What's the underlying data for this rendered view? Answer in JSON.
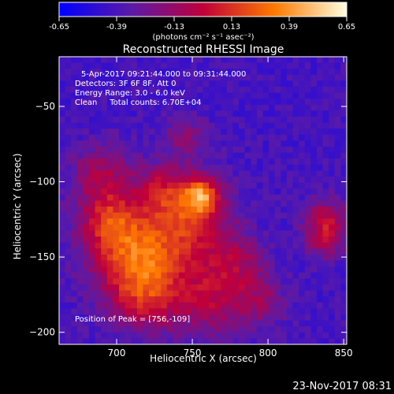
{
  "chart_data": {
    "type": "heatmap",
    "title": "Reconstructed RHESSI Image",
    "colorbar": {
      "ticks": [
        "-0.65",
        "-0.39",
        "-0.13",
        "0.13",
        "0.39",
        "0.65"
      ],
      "range": [
        -0.65,
        0.65
      ],
      "unit_label": "(photons cm⁻² s⁻¹ asec⁻²)"
    },
    "annotations": {
      "time": "5-Apr-2017 09:21:44.000 to 09:31:44.000",
      "detectors": "Detectors: 3F 6F 8F, Att 0",
      "energy": "Energy Range: 3.0 - 6.0 keV",
      "clean": "Clean     Total counts: 6.70E+04",
      "peak": "Position of Peak = [756,-109]"
    },
    "xlabel": "Heliocentric X (arcsec)",
    "ylabel": "Heliocentric Y (arcsec)",
    "xlim": [
      662,
      852
    ],
    "ylim": [
      -208,
      -17
    ],
    "xticks": [
      {
        "value": 700,
        "label": "700"
      },
      {
        "value": 750,
        "label": "750"
      },
      {
        "value": 800,
        "label": "800"
      },
      {
        "value": 850,
        "label": "850"
      }
    ],
    "yticks": [
      {
        "value": -50,
        "label": "−50"
      },
      {
        "value": -100,
        "label": "−100"
      },
      {
        "value": -150,
        "label": "−150"
      },
      {
        "value": -200,
        "label": "−200"
      }
    ],
    "peak": {
      "x": 756,
      "y": -109,
      "value": 0.65
    },
    "blobs": [
      {
        "x": 756,
        "y": -109,
        "sigma": 8,
        "amp": 0.5
      },
      {
        "x": 752,
        "y": -118,
        "sigma": 16,
        "amp": 0.3
      },
      {
        "x": 740,
        "y": -140,
        "sigma": 22,
        "amp": 0.32
      },
      {
        "x": 710,
        "y": -150,
        "sigma": 20,
        "amp": 0.5
      },
      {
        "x": 695,
        "y": -125,
        "sigma": 14,
        "amp": 0.38
      },
      {
        "x": 690,
        "y": -95,
        "sigma": 14,
        "amp": 0.3
      },
      {
        "x": 720,
        "y": -178,
        "sigma": 16,
        "amp": 0.35
      },
      {
        "x": 762,
        "y": -180,
        "sigma": 16,
        "amp": 0.3
      },
      {
        "x": 780,
        "y": -155,
        "sigma": 14,
        "amp": 0.25
      },
      {
        "x": 730,
        "y": -105,
        "sigma": 12,
        "amp": 0.3
      },
      {
        "x": 745,
        "y": -70,
        "sigma": 10,
        "amp": 0.22
      },
      {
        "x": 795,
        "y": -180,
        "sigma": 12,
        "amp": 0.22
      },
      {
        "x": 838,
        "y": -125,
        "sigma": 10,
        "amp": 0.35
      },
      {
        "x": 838,
        "y": -140,
        "sigma": 9,
        "amp": 0.25
      }
    ],
    "background": -0.4
  },
  "footer": {
    "timestamp": "23-Nov-2017 08:31"
  }
}
